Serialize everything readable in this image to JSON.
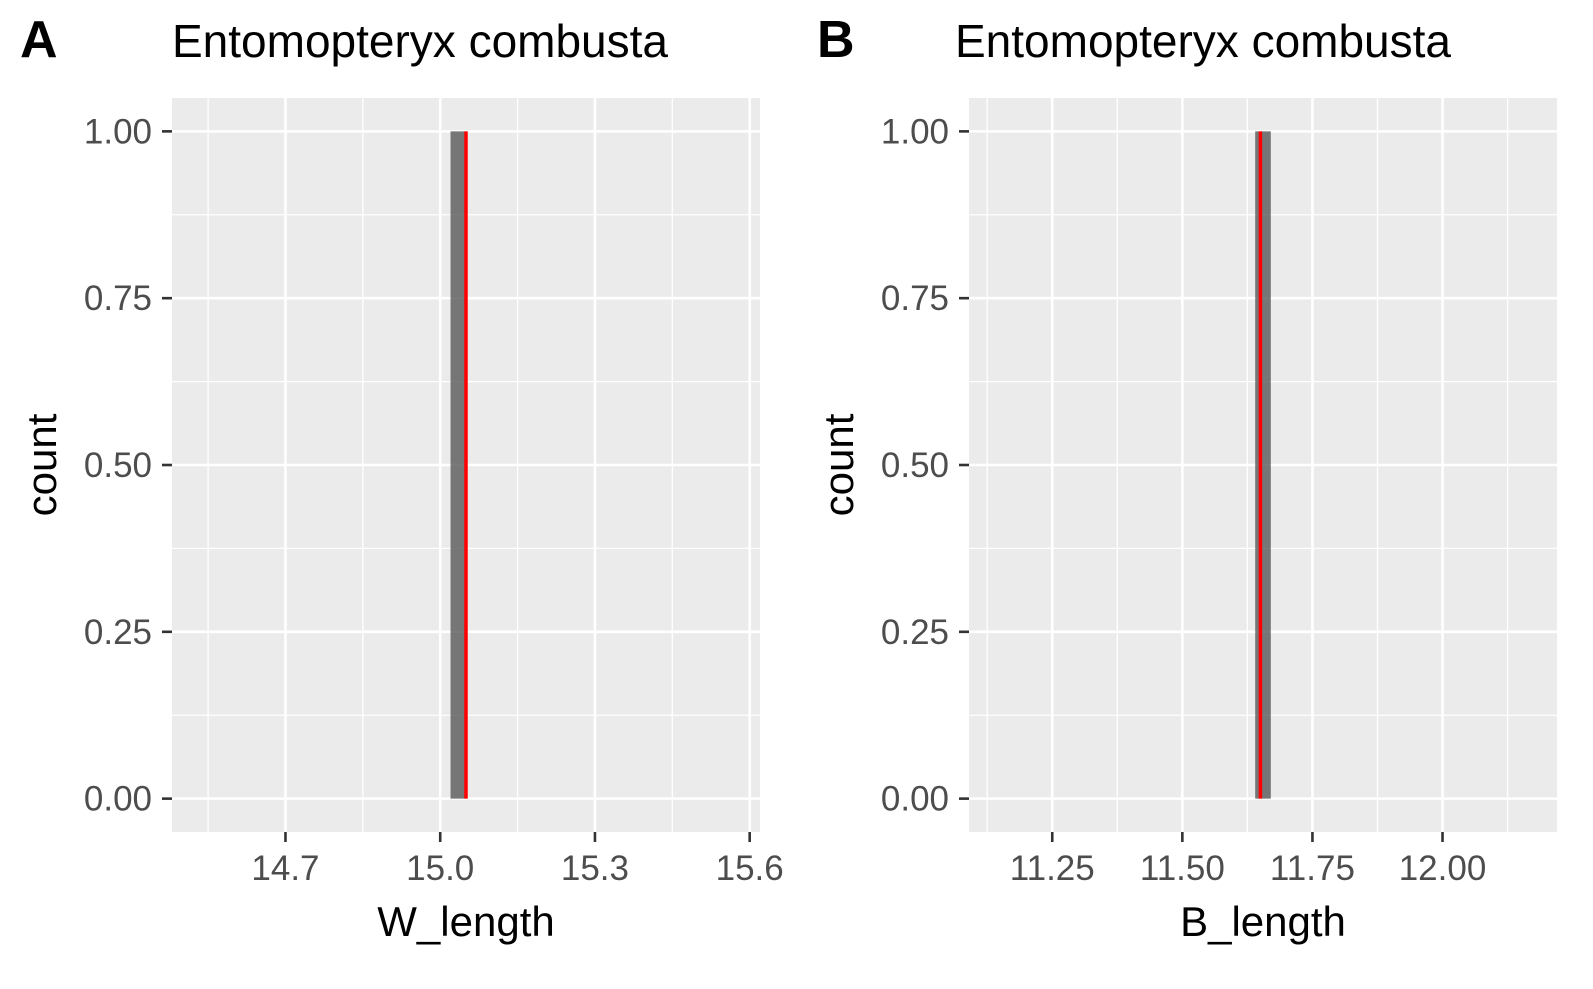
{
  "chart_data": [
    {
      "panel_tag": "A",
      "type": "bar",
      "title": "Entomopteryx combusta",
      "xlabel": "W_length",
      "ylabel": "count",
      "xlim": [
        14.48,
        15.62
      ],
      "ylim": [
        -0.05,
        1.05
      ],
      "xticks": [
        14.7,
        15.0,
        15.3,
        15.6
      ],
      "xtick_labels": [
        "14.7",
        "15.0",
        "15.3",
        "15.6"
      ],
      "yticks": [
        0,
        0.25,
        0.5,
        0.75,
        1.0
      ],
      "ytick_labels": [
        "0.00",
        "0.25",
        "0.50",
        "0.75",
        "1.00"
      ],
      "bars": [
        {
          "xmin": 15.02,
          "xmax": 15.05,
          "count": 1
        }
      ],
      "reference_line": {
        "x": 15.05,
        "color": "#ff0000"
      },
      "grid": true,
      "colors": {
        "panel_bg": "#ebebeb",
        "grid": "#ffffff",
        "bar": "#595959",
        "text": "#4d4d4d"
      }
    },
    {
      "panel_tag": "B",
      "type": "bar",
      "title": "Entomopteryx combusta",
      "xlabel": "B_length",
      "ylabel": "count",
      "xlim": [
        11.09,
        12.22
      ],
      "ylim": [
        -0.05,
        1.05
      ],
      "xticks": [
        11.25,
        11.5,
        11.75,
        12.0
      ],
      "xtick_labels": [
        "11.25",
        "11.50",
        "11.75",
        "12.00"
      ],
      "yticks": [
        0,
        0.25,
        0.5,
        0.75,
        1.0
      ],
      "ytick_labels": [
        "0.00",
        "0.25",
        "0.50",
        "0.75",
        "1.00"
      ],
      "bars": [
        {
          "xmin": 11.64,
          "xmax": 11.67,
          "count": 1
        }
      ],
      "reference_line": {
        "x": 11.65,
        "color": "#ff0000"
      },
      "grid": true,
      "colors": {
        "panel_bg": "#ebebeb",
        "grid": "#ffffff",
        "bar": "#595959",
        "text": "#4d4d4d"
      }
    }
  ]
}
